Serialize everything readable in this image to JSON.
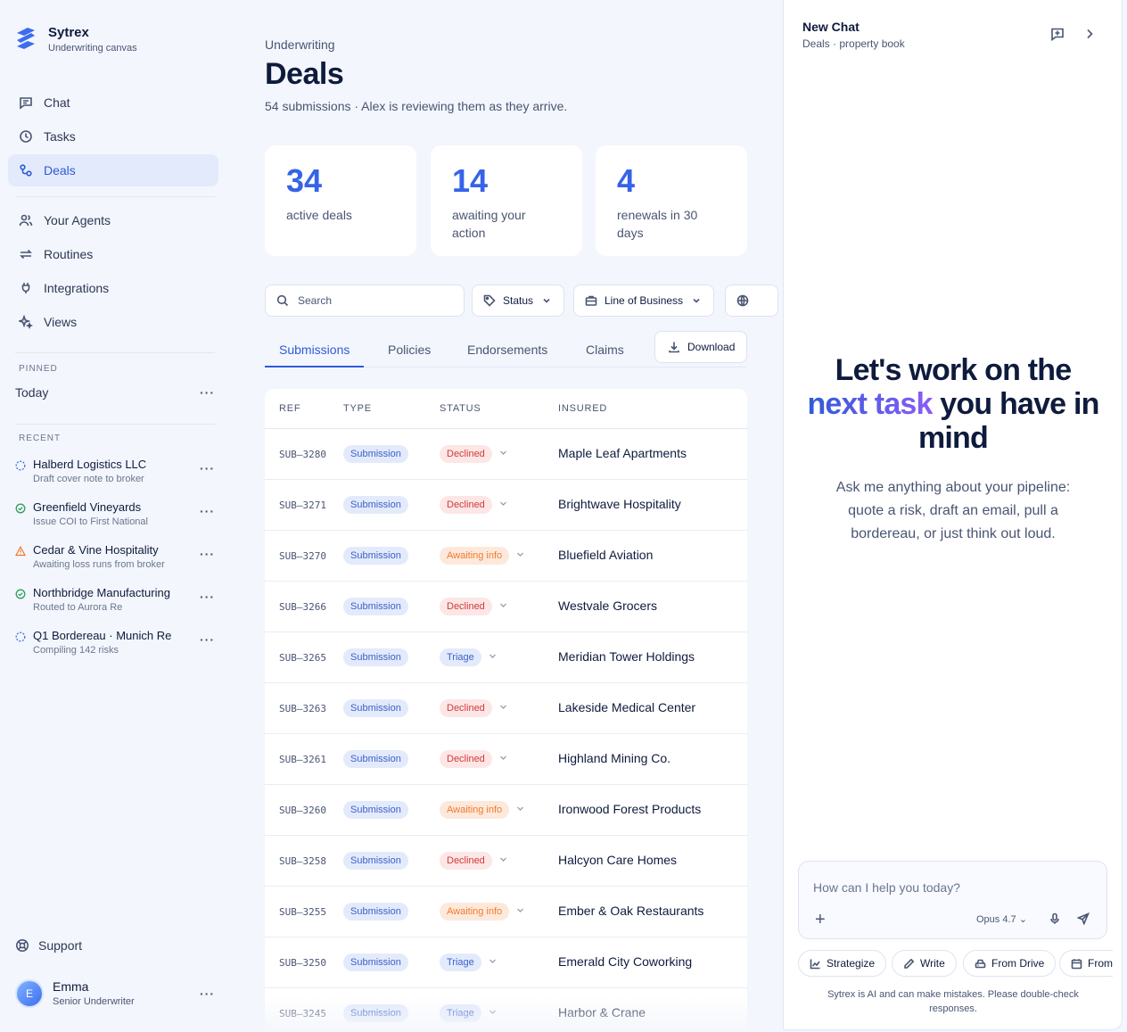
{
  "brand": {
    "name": "Sytrex",
    "subtitle": "Underwriting canvas"
  },
  "nav": {
    "primary": [
      {
        "label": "Chat",
        "icon": "chat-icon"
      },
      {
        "label": "Tasks",
        "icon": "clock-icon"
      },
      {
        "label": "Deals",
        "icon": "deals-icon",
        "active": true
      }
    ],
    "secondary": [
      {
        "label": "Your Agents",
        "icon": "users-icon"
      },
      {
        "label": "Routines",
        "icon": "repeat-icon"
      },
      {
        "label": "Integrations",
        "icon": "plug-icon"
      },
      {
        "label": "Views",
        "icon": "sparkle-icon"
      }
    ]
  },
  "pinned": {
    "label": "PINNED",
    "items": [
      {
        "label": "Today"
      }
    ]
  },
  "recent": {
    "label": "RECENT",
    "items": [
      {
        "title": "Halberd Logistics LLC",
        "sub": "Draft cover note to broker",
        "state": "in-progress"
      },
      {
        "title": "Greenfield Vineyards",
        "sub": "Issue COI to First National",
        "state": "done"
      },
      {
        "title": "Cedar & Vine Hospitality",
        "sub": "Awaiting loss runs from broker",
        "state": "warning"
      },
      {
        "title": "Northbridge Manufacturing",
        "sub": "Routed to Aurora Re",
        "state": "done"
      },
      {
        "title": "Q1 Bordereau · Munich Re",
        "sub": "Compiling 142 risks",
        "state": "in-progress"
      }
    ]
  },
  "support": {
    "label": "Support"
  },
  "user": {
    "initial": "E",
    "name": "Emma",
    "role": "Senior Underwriter"
  },
  "main": {
    "eyebrow": "Underwriting",
    "title": "Deals",
    "subtitle": "54 submissions · Alex is reviewing them as they arrive.",
    "stats": [
      {
        "value": "34",
        "label": "active deals"
      },
      {
        "value": "14",
        "label": "awaiting your action"
      },
      {
        "value": "4",
        "label": "renewals in 30 days"
      }
    ],
    "search_placeholder": "Search",
    "filters": [
      {
        "label": "Status"
      },
      {
        "label": "Line of Business"
      }
    ],
    "tabs": [
      "Submissions",
      "Policies",
      "Endorsements",
      "Claims"
    ],
    "download_label": "Download",
    "table": {
      "columns": [
        "REF",
        "TYPE",
        "STATUS",
        "INSURED"
      ],
      "rows": [
        {
          "ref": "SUB–3280",
          "type": "Submission",
          "status": "Declined",
          "insured": "Maple Leaf Apartments"
        },
        {
          "ref": "SUB–3271",
          "type": "Submission",
          "status": "Declined",
          "insured": "Brightwave Hospitality"
        },
        {
          "ref": "SUB–3270",
          "type": "Submission",
          "status": "Awaiting info",
          "insured": "Bluefield Aviation"
        },
        {
          "ref": "SUB–3266",
          "type": "Submission",
          "status": "Declined",
          "insured": "Westvale Grocers"
        },
        {
          "ref": "SUB–3265",
          "type": "Submission",
          "status": "Triage",
          "insured": "Meridian Tower Holdings"
        },
        {
          "ref": "SUB–3263",
          "type": "Submission",
          "status": "Declined",
          "insured": "Lakeside Medical Center"
        },
        {
          "ref": "SUB–3261",
          "type": "Submission",
          "status": "Declined",
          "insured": "Highland Mining Co."
        },
        {
          "ref": "SUB–3260",
          "type": "Submission",
          "status": "Awaiting info",
          "insured": "Ironwood Forest Products"
        },
        {
          "ref": "SUB–3258",
          "type": "Submission",
          "status": "Declined",
          "insured": "Halcyon Care Homes"
        },
        {
          "ref": "SUB–3255",
          "type": "Submission",
          "status": "Awaiting info",
          "insured": "Ember & Oak Restaurants"
        },
        {
          "ref": "SUB–3250",
          "type": "Submission",
          "status": "Triage",
          "insured": "Emerald City Coworking"
        },
        {
          "ref": "SUB–3245",
          "type": "Submission",
          "status": "Triage",
          "insured": "Harbor & Crane"
        }
      ]
    }
  },
  "chat": {
    "title": "New Chat",
    "subtitle": "Deals · property book",
    "hero_line1": "Let's work on the",
    "hero_accent": "next task",
    "hero_rest": " you have in mind",
    "hero_sub": "Ask me anything about your pipeline: quote a risk, draft an email, pull a bordereau, or just think out loud.",
    "input_placeholder": "How can I help you today?",
    "model": "Opus 4.7",
    "chips": [
      "Strategize",
      "Write",
      "From Drive",
      "From"
    ],
    "disclaimer": "Sytrex is AI and can make mistakes. Please double-check responses."
  },
  "colors": {
    "accent": "#2f5bd8",
    "declined": "#d13a3a",
    "awaiting": "#f07a2c",
    "done": "#2f9e5a"
  }
}
